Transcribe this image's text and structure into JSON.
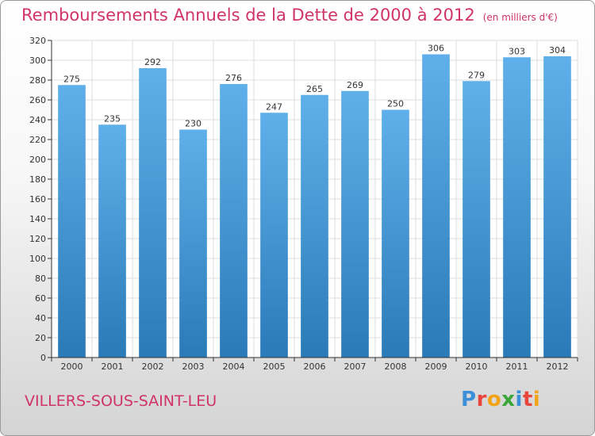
{
  "chart_data": {
    "type": "bar",
    "title": "Remboursements Annuels de la Dette de 2000 à 2012",
    "unit_note": "(en milliers d'€)",
    "categories": [
      "2000",
      "2001",
      "2002",
      "2003",
      "2004",
      "2005",
      "2006",
      "2007",
      "2008",
      "2009",
      "2010",
      "2011",
      "2012"
    ],
    "values": [
      275,
      235,
      292,
      230,
      276,
      247,
      265,
      269,
      250,
      306,
      279,
      303,
      304
    ],
    "ylim": [
      0,
      320
    ],
    "yticks": [
      0,
      20,
      40,
      60,
      80,
      100,
      120,
      140,
      160,
      180,
      200,
      220,
      240,
      260,
      280,
      300,
      320
    ],
    "xlabel": "",
    "ylabel": "",
    "grid": true,
    "bar_color_top": "#5fb0ea",
    "bar_color_bottom": "#2a7ab8"
  },
  "footer": {
    "commune": "VILLERS-SOUS-SAINT-LEU",
    "logo_letters": [
      {
        "ch": "P",
        "color": "#3a8fd8"
      },
      {
        "ch": "r",
        "color": "#e8453c"
      },
      {
        "ch": "o",
        "color": "#f2a317"
      },
      {
        "ch": "x",
        "color": "#3aa63a"
      },
      {
        "ch": "i",
        "color": "#3a8fd8"
      },
      {
        "ch": "t",
        "color": "#e8453c"
      },
      {
        "ch": "i",
        "color": "#f2a317"
      }
    ]
  },
  "colors": {
    "title": "#d0336a",
    "axis": "#333333",
    "grid": "#dddddd"
  }
}
